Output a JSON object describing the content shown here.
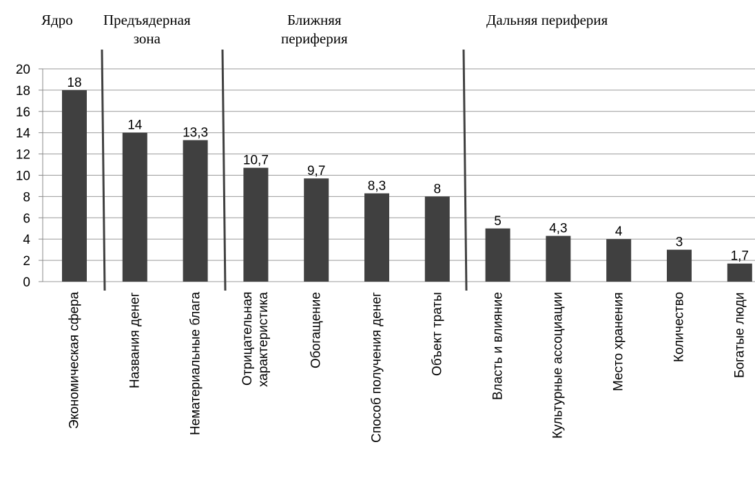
{
  "chart_data": {
    "type": "bar",
    "annotations": [
      "Ядро",
      "Предъядерная\nзона",
      "Ближняя\nпериферия",
      "Дальняя периферия"
    ],
    "categories": [
      "Экономическая сфера",
      "Названия денег",
      "Нематериальные блага",
      "Отрицательная\nхарактеристика",
      "Обогащение",
      "Способ получения денег",
      "Объект траты",
      "Власть и влияние",
      "Культурные ассоциации",
      "Место хранения",
      "Количество",
      "Богатые люди"
    ],
    "values": [
      18,
      14,
      13.3,
      10.7,
      9.7,
      8.3,
      8,
      5,
      4.3,
      4,
      3,
      1.7
    ],
    "value_labels": [
      "18",
      "14",
      "13,3",
      "10,7",
      "9,7",
      "8,3",
      "8",
      "5",
      "4,3",
      "4",
      "3",
      "1,7"
    ],
    "color": "#404040",
    "ylim": [
      0,
      20
    ],
    "yticks": [
      0,
      2,
      4,
      6,
      8,
      10,
      12,
      14,
      16,
      18,
      20
    ],
    "grid": true
  }
}
